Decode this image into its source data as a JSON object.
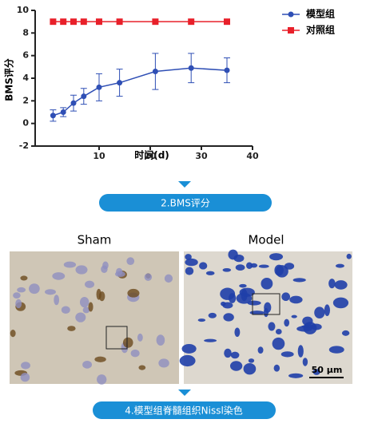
{
  "chart_data": {
    "type": "line",
    "x_label": "时间(d)",
    "y_label": "BMS评分",
    "x": [
      1,
      3,
      5,
      7,
      10,
      14,
      21,
      28,
      35
    ],
    "series": [
      {
        "name": "模型组",
        "color": "#2f4fb5",
        "marker": "circle",
        "values": [
          0.7,
          1.0,
          1.8,
          2.4,
          3.2,
          3.6,
          4.6,
          4.9,
          4.7
        ],
        "errors": [
          0.5,
          0.4,
          0.7,
          0.7,
          1.2,
          1.2,
          1.6,
          1.3,
          1.1
        ]
      },
      {
        "name": "对照组",
        "color": "#e8202a",
        "marker": "square",
        "values": [
          9,
          9,
          9,
          9,
          9,
          9,
          9,
          9,
          9
        ]
      }
    ],
    "xlim": [
      -2.5,
      40
    ],
    "xticks": [
      10,
      20,
      30,
      40
    ],
    "ylim": [
      -2,
      10
    ],
    "yticks": [
      -2,
      0,
      2,
      4,
      6,
      8,
      10
    ]
  },
  "steps": [
    "2.BMS评分",
    "4.模型组脊髓组织Nissl染色"
  ],
  "panels": [
    {
      "title": "Sham"
    },
    {
      "title": "Model",
      "scale_bar": "50 μm"
    }
  ]
}
